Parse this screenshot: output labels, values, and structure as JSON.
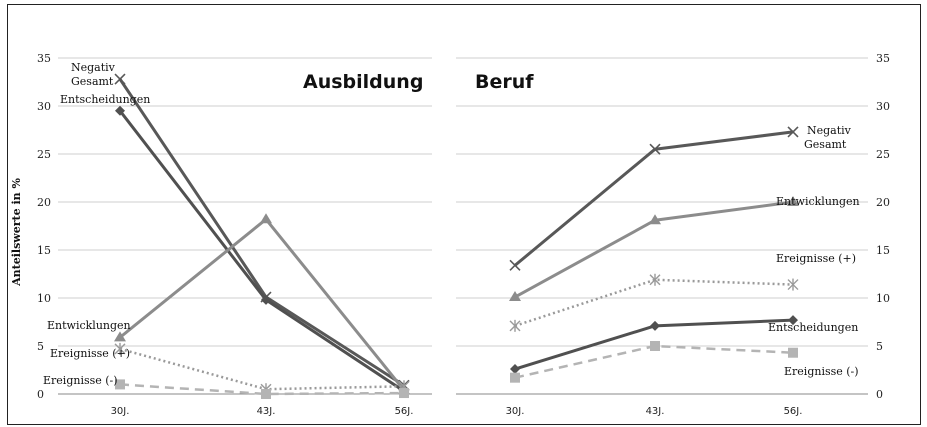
{
  "chart_data": [
    {
      "type": "line",
      "title": "Ausbildung",
      "ylabel": "Anteilswerte in %",
      "ylim": [
        0,
        35
      ],
      "yticks": [
        0,
        5,
        10,
        15,
        20,
        25,
        30,
        35
      ],
      "categories": [
        "30J.",
        "43J.",
        "56J."
      ],
      "grid": true,
      "series": [
        {
          "name": "Negativ Gesamt",
          "values": [
            32.8,
            10.1,
            0.9
          ],
          "color": "#585858",
          "marker": "x",
          "dash": "solid"
        },
        {
          "name": "Entscheidungen",
          "values": [
            29.5,
            9.8,
            0.3
          ],
          "color": "#505050",
          "marker": "diamond",
          "dash": "solid"
        },
        {
          "name": "Entwicklungen",
          "values": [
            5.9,
            18.2,
            0.4
          ],
          "color": "#8c8c8c",
          "marker": "triangle",
          "dash": "solid"
        },
        {
          "name": "Ereignisse (+)",
          "values": [
            4.7,
            0.5,
            0.8
          ],
          "color": "#9a9a9a",
          "marker": "star",
          "dash": "dotted"
        },
        {
          "name": "Ereignisse (-)",
          "values": [
            1.0,
            0.0,
            0.1
          ],
          "color": "#b4b4b4",
          "marker": "square",
          "dash": "dashed"
        }
      ],
      "labels": [
        "Negativ",
        "Gesamt",
        "Entscheidungen",
        "Entwicklungen",
        "Ereignisse (+)",
        "Ereignisse (-)"
      ]
    },
    {
      "type": "line",
      "title": "Beruf",
      "ylim": [
        0,
        35
      ],
      "yticks": [
        0,
        5,
        10,
        15,
        20,
        25,
        30,
        35
      ],
      "categories": [
        "30J.",
        "43J.",
        "56J."
      ],
      "grid": true,
      "series": [
        {
          "name": "Negativ Gesamt",
          "values": [
            13.4,
            25.5,
            27.3
          ],
          "color": "#585858",
          "marker": "x",
          "dash": "solid"
        },
        {
          "name": "Entwicklungen",
          "values": [
            10.1,
            18.1,
            20.0
          ],
          "color": "#8c8c8c",
          "marker": "triangle",
          "dash": "solid"
        },
        {
          "name": "Ereignisse (+)",
          "values": [
            7.1,
            11.9,
            11.4
          ],
          "color": "#9a9a9a",
          "marker": "star",
          "dash": "dotted"
        },
        {
          "name": "Entscheidungen",
          "values": [
            2.6,
            7.1,
            7.7
          ],
          "color": "#505050",
          "marker": "diamond",
          "dash": "solid"
        },
        {
          "name": "Ereignisse (-)",
          "values": [
            1.7,
            5.0,
            4.3
          ],
          "color": "#b4b4b4",
          "marker": "square",
          "dash": "dashed"
        }
      ],
      "labels": [
        "Negativ",
        "Gesamt",
        "Entwicklungen",
        "Ereignisse (+)",
        "Entscheidungen",
        "Ereignisse (-)"
      ]
    }
  ]
}
